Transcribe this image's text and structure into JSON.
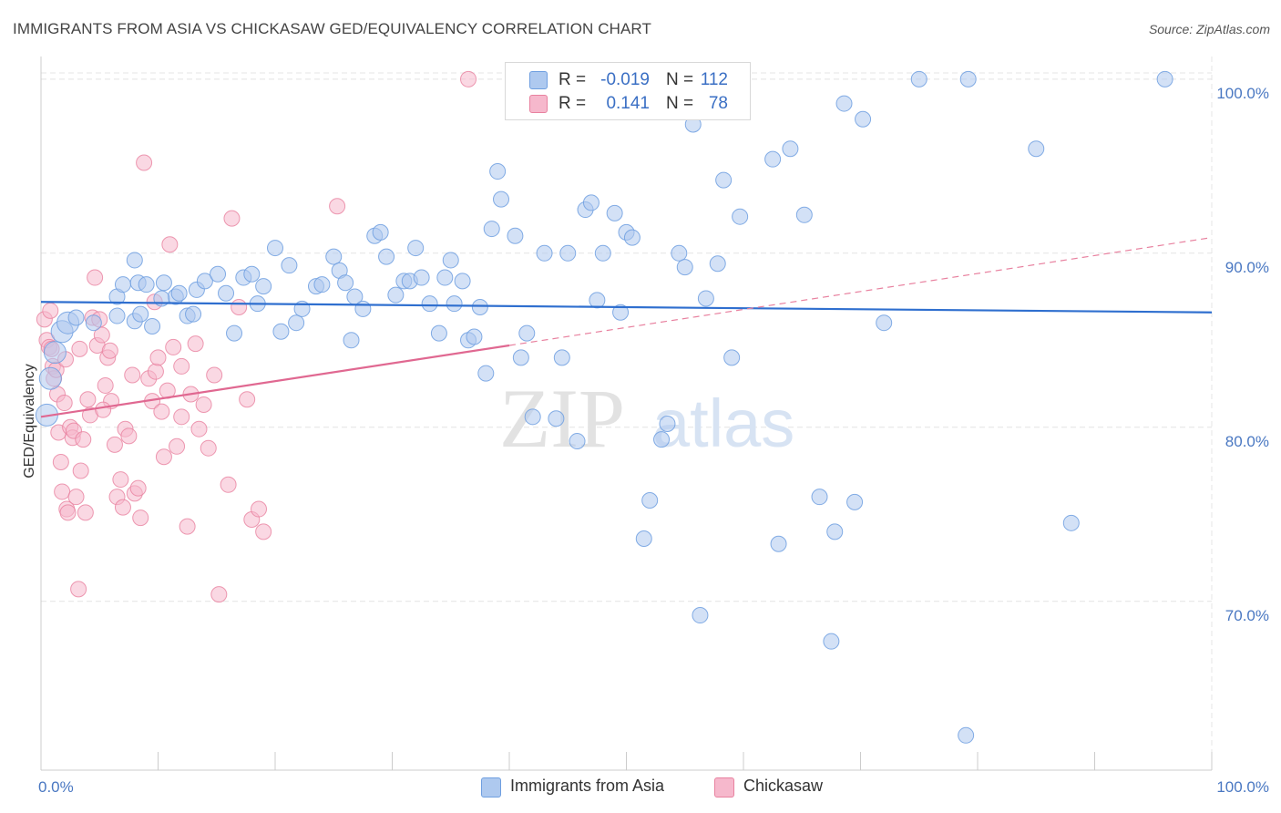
{
  "header": {
    "title": "IMMIGRANTS FROM ASIA VS CHICKASAW GED/EQUIVALENCY CORRELATION CHART",
    "source": "Source: ZipAtlas.com"
  },
  "watermark": {
    "zip": "ZIP",
    "atlas": "atlas"
  },
  "legend": {
    "rows": [
      {
        "r_label": "R =",
        "r_value": "-0.019",
        "n_label": "N =",
        "n_value": "112",
        "color": "#aec9ef"
      },
      {
        "r_label": "R =",
        "r_value": "0.141",
        "n_label": "N =",
        "n_value": "78",
        "color": "#f6b8cc"
      }
    ]
  },
  "bottom_legend": [
    {
      "label": "Immigrants from Asia",
      "color": "#aec9ef"
    },
    {
      "label": "Chickasaw",
      "color": "#f6b8cc"
    }
  ],
  "chart_data": {
    "type": "scatter",
    "ylabel": "GED/Equivalency",
    "xlim": [
      0,
      100
    ],
    "ylim": [
      60.3,
      101.3
    ],
    "x_tick_labels": [
      "0.0%",
      "100.0%"
    ],
    "y_ticks": [
      {
        "value": 100,
        "label": "100.0%"
      },
      {
        "value": 90,
        "label": "90.0%"
      },
      {
        "value": 80,
        "label": "80.0%"
      },
      {
        "value": 70,
        "label": "70.0%"
      }
    ],
    "grid": true,
    "legend_position": "top-center",
    "series": [
      {
        "name": "Immigrants from Asia",
        "color": "#6f9fe0",
        "fill": "#aec9ef",
        "trend": {
          "x0": 0,
          "y0": 87.2,
          "x1": 100,
          "y1": 86.6,
          "color": "#2f6fcf"
        },
        "points": [
          [
            0.5,
            80.7
          ],
          [
            0.8,
            82.8
          ],
          [
            1.2,
            84.3
          ],
          [
            1.8,
            85.5
          ],
          [
            2.3,
            86.0
          ],
          [
            3.0,
            86.3
          ],
          [
            4.5,
            86.0
          ],
          [
            6.5,
            86.4
          ],
          [
            6.5,
            87.5
          ],
          [
            7.0,
            88.2
          ],
          [
            8.0,
            89.6
          ],
          [
            8.3,
            88.3
          ],
          [
            8.0,
            86.1
          ],
          [
            9.0,
            88.2
          ],
          [
            9.5,
            85.8
          ],
          [
            10.5,
            88.3
          ],
          [
            11.5,
            87.5
          ],
          [
            11.8,
            87.7
          ],
          [
            12.5,
            86.4
          ],
          [
            13.3,
            87.9
          ],
          [
            14.0,
            88.4
          ],
          [
            15.1,
            88.8
          ],
          [
            15.8,
            87.7
          ],
          [
            16.5,
            85.4
          ],
          [
            17.3,
            88.6
          ],
          [
            18.0,
            88.8
          ],
          [
            18.5,
            87.1
          ],
          [
            19.0,
            88.1
          ],
          [
            20.0,
            90.3
          ],
          [
            20.5,
            85.5
          ],
          [
            21.2,
            89.3
          ],
          [
            21.8,
            86.0
          ],
          [
            22.3,
            86.8
          ],
          [
            23.5,
            88.1
          ],
          [
            24.0,
            88.2
          ],
          [
            25.0,
            89.8
          ],
          [
            25.5,
            89.0
          ],
          [
            26.0,
            88.3
          ],
          [
            26.5,
            85.0
          ],
          [
            26.8,
            87.5
          ],
          [
            27.5,
            86.8
          ],
          [
            28.5,
            91.0
          ],
          [
            29.0,
            91.2
          ],
          [
            29.5,
            89.8
          ],
          [
            30.3,
            87.6
          ],
          [
            31.0,
            88.4
          ],
          [
            31.5,
            88.4
          ],
          [
            32.0,
            90.3
          ],
          [
            32.5,
            88.6
          ],
          [
            33.2,
            87.1
          ],
          [
            34.0,
            85.4
          ],
          [
            34.5,
            88.6
          ],
          [
            35.0,
            89.6
          ],
          [
            35.3,
            87.1
          ],
          [
            36.0,
            88.4
          ],
          [
            36.5,
            85.0
          ],
          [
            37.0,
            85.2
          ],
          [
            37.5,
            86.9
          ],
          [
            38.0,
            83.1
          ],
          [
            38.5,
            91.4
          ],
          [
            39.0,
            94.7
          ],
          [
            39.3,
            93.1
          ],
          [
            40.5,
            91.0
          ],
          [
            41.0,
            84.0
          ],
          [
            41.5,
            85.4
          ],
          [
            42.0,
            80.6
          ],
          [
            43.0,
            90.0
          ],
          [
            44.0,
            80.5
          ],
          [
            44.5,
            84.0
          ],
          [
            45.0,
            90.0
          ],
          [
            45.8,
            79.2
          ],
          [
            46.5,
            92.5
          ],
          [
            47.0,
            92.9
          ],
          [
            47.5,
            87.3
          ],
          [
            48.0,
            90.0
          ],
          [
            49.0,
            92.3
          ],
          [
            49.5,
            86.6
          ],
          [
            50.0,
            91.2
          ],
          [
            50.5,
            90.9
          ],
          [
            51.5,
            73.6
          ],
          [
            52.0,
            75.8
          ],
          [
            53.0,
            79.3
          ],
          [
            53.5,
            80.2
          ],
          [
            54.5,
            90.0
          ],
          [
            55.0,
            89.2
          ],
          [
            55.7,
            97.4
          ],
          [
            56.3,
            69.2
          ],
          [
            56.8,
            87.4
          ],
          [
            57.8,
            89.4
          ],
          [
            58.3,
            94.2
          ],
          [
            59.0,
            84.0
          ],
          [
            59.7,
            92.1
          ],
          [
            62.5,
            95.4
          ],
          [
            63.0,
            73.3
          ],
          [
            64.0,
            96.0
          ],
          [
            65.2,
            92.2
          ],
          [
            66.5,
            76.0
          ],
          [
            67.5,
            67.7
          ],
          [
            67.8,
            74.0
          ],
          [
            68.6,
            98.6
          ],
          [
            69.5,
            75.7
          ],
          [
            70.2,
            97.7
          ],
          [
            72.0,
            86.0
          ],
          [
            75.0,
            100.0
          ],
          [
            79.0,
            62.3
          ],
          [
            79.2,
            100.0
          ],
          [
            85.0,
            96.0
          ],
          [
            88.0,
            74.5
          ],
          [
            96.0,
            100.0
          ],
          [
            8.5,
            86.5
          ],
          [
            10.3,
            87.4
          ],
          [
            13.0,
            86.5
          ]
        ]
      },
      {
        "name": "Chickasaw",
        "color": "#e8819f",
        "fill": "#f6b8cc",
        "trend_solid": {
          "x0": 0,
          "y0": 80.6,
          "x1": 40,
          "y1": 84.7,
          "color": "#e06891"
        },
        "trend_dashed": {
          "x0": 40,
          "y0": 84.7,
          "x1": 100,
          "y1": 90.9,
          "color": "#e8819f"
        },
        "points": [
          [
            0.3,
            86.2
          ],
          [
            0.5,
            85.0
          ],
          [
            0.7,
            84.6
          ],
          [
            0.9,
            84.5
          ],
          [
            1.0,
            83.5
          ],
          [
            1.1,
            82.8
          ],
          [
            1.3,
            83.3
          ],
          [
            1.4,
            81.9
          ],
          [
            1.5,
            79.7
          ],
          [
            1.7,
            78.0
          ],
          [
            1.8,
            76.3
          ],
          [
            2.0,
            81.4
          ],
          [
            2.2,
            75.3
          ],
          [
            2.3,
            75.1
          ],
          [
            2.5,
            80.0
          ],
          [
            2.7,
            79.4
          ],
          [
            2.8,
            79.8
          ],
          [
            3.0,
            76.0
          ],
          [
            3.2,
            70.7
          ],
          [
            3.3,
            84.5
          ],
          [
            3.6,
            79.3
          ],
          [
            3.8,
            75.1
          ],
          [
            4.0,
            81.6
          ],
          [
            4.2,
            80.7
          ],
          [
            4.4,
            86.3
          ],
          [
            4.6,
            88.6
          ],
          [
            4.8,
            84.7
          ],
          [
            5.0,
            86.2
          ],
          [
            5.2,
            85.3
          ],
          [
            5.5,
            82.4
          ],
          [
            5.7,
            84.0
          ],
          [
            5.9,
            84.4
          ],
          [
            6.0,
            81.5
          ],
          [
            6.3,
            79.0
          ],
          [
            6.5,
            76.0
          ],
          [
            6.8,
            77.0
          ],
          [
            7.0,
            75.4
          ],
          [
            7.2,
            79.9
          ],
          [
            7.5,
            79.5
          ],
          [
            7.8,
            83.0
          ],
          [
            8.0,
            76.2
          ],
          [
            8.3,
            76.5
          ],
          [
            8.5,
            74.8
          ],
          [
            8.8,
            95.2
          ],
          [
            9.2,
            82.8
          ],
          [
            9.5,
            81.5
          ],
          [
            9.8,
            83.2
          ],
          [
            10.0,
            84.0
          ],
          [
            10.3,
            80.9
          ],
          [
            10.5,
            78.3
          ],
          [
            10.8,
            82.1
          ],
          [
            11.0,
            90.5
          ],
          [
            11.3,
            84.6
          ],
          [
            11.6,
            78.9
          ],
          [
            12.0,
            80.6
          ],
          [
            12.5,
            74.3
          ],
          [
            12.8,
            81.9
          ],
          [
            13.2,
            84.8
          ],
          [
            13.5,
            79.9
          ],
          [
            13.9,
            81.3
          ],
          [
            14.3,
            78.8
          ],
          [
            14.8,
            83.0
          ],
          [
            15.2,
            70.4
          ],
          [
            16.0,
            76.7
          ],
          [
            16.3,
            92.0
          ],
          [
            16.9,
            86.9
          ],
          [
            17.6,
            81.6
          ],
          [
            18.0,
            74.7
          ],
          [
            18.6,
            75.3
          ],
          [
            19.0,
            74.0
          ],
          [
            25.3,
            92.7
          ],
          [
            36.5,
            100.0
          ],
          [
            3.4,
            77.5
          ],
          [
            0.8,
            86.7
          ],
          [
            2.1,
            83.9
          ],
          [
            5.3,
            81.0
          ],
          [
            9.7,
            87.2
          ],
          [
            12.0,
            83.5
          ]
        ]
      }
    ]
  }
}
